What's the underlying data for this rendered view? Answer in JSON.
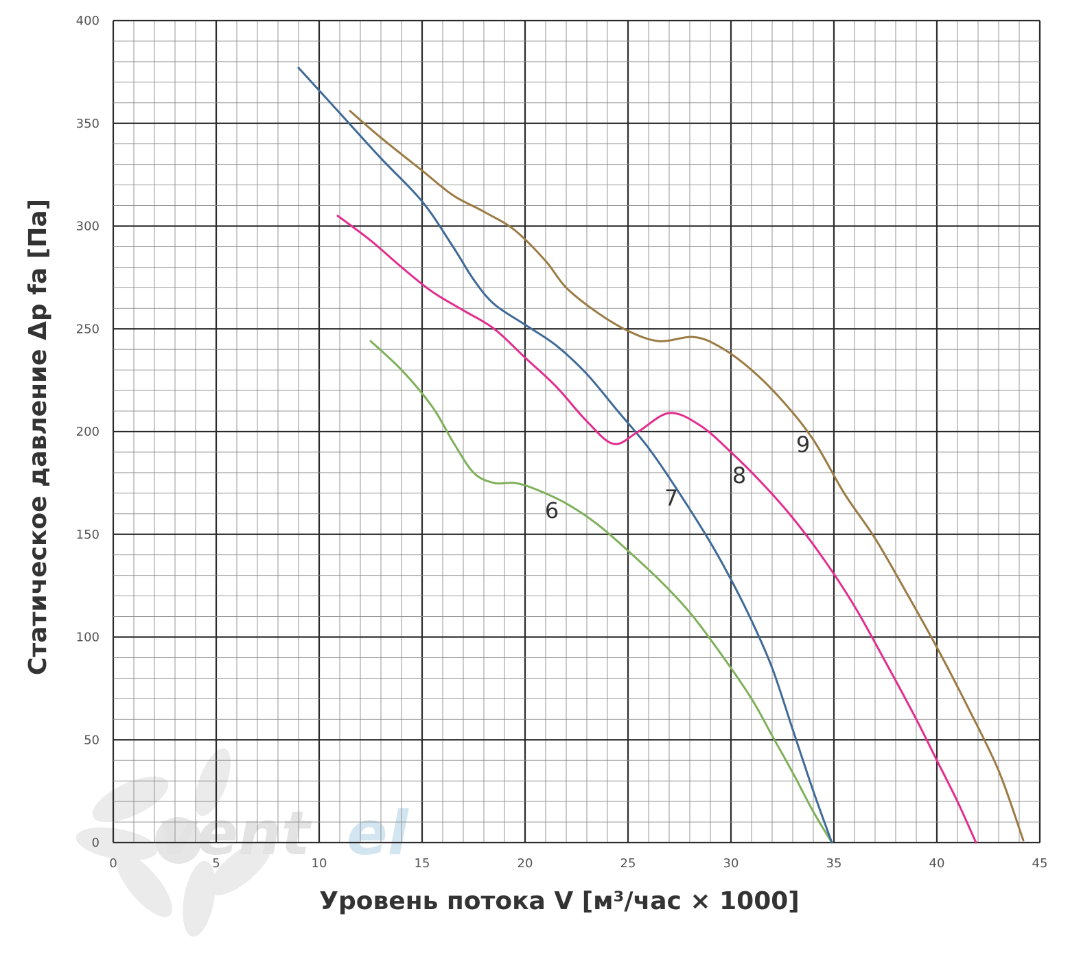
{
  "chart_data": {
    "type": "line",
    "title": "",
    "xlabel": "Уровень потока V [м³/час × 1000]",
    "ylabel": "Статическое давление Δp fa [Па]",
    "xlim": [
      0,
      45
    ],
    "ylim": [
      0,
      400
    ],
    "x_ticks": [
      "0",
      "5",
      "10",
      "15",
      "20",
      "25",
      "30",
      "35",
      "40",
      "45"
    ],
    "y_ticks": [
      "0",
      "50",
      "100",
      "150",
      "200",
      "250",
      "300",
      "350",
      "400"
    ],
    "grid": true,
    "watermark": "ventel",
    "series": [
      {
        "name": "6",
        "color": "#7fb05a",
        "points": [
          [
            12.5,
            244
          ],
          [
            14,
            230
          ],
          [
            15.5,
            212
          ],
          [
            16.5,
            195
          ],
          [
            17.5,
            180
          ],
          [
            18.5,
            175
          ],
          [
            19.5,
            175
          ],
          [
            20.5,
            172
          ],
          [
            22,
            165
          ],
          [
            23.5,
            155
          ],
          [
            25,
            142
          ],
          [
            26.5,
            128
          ],
          [
            28,
            112
          ],
          [
            29.5,
            92
          ],
          [
            31,
            70
          ],
          [
            32,
            52
          ],
          [
            33,
            34
          ],
          [
            34,
            15
          ],
          [
            34.9,
            0
          ]
        ]
      },
      {
        "name": "7",
        "color": "#3f6a97",
        "points": [
          [
            9,
            377
          ],
          [
            11,
            355
          ],
          [
            13,
            333
          ],
          [
            15,
            312
          ],
          [
            16.5,
            290
          ],
          [
            17.5,
            274
          ],
          [
            18.5,
            262
          ],
          [
            20,
            252
          ],
          [
            21.5,
            242
          ],
          [
            23,
            228
          ],
          [
            24.5,
            210
          ],
          [
            26,
            192
          ],
          [
            27.5,
            170
          ],
          [
            29,
            146
          ],
          [
            30,
            128
          ],
          [
            31,
            108
          ],
          [
            32,
            85
          ],
          [
            33,
            55
          ],
          [
            34,
            25
          ],
          [
            34.9,
            0
          ]
        ]
      },
      {
        "name": "8",
        "color": "#e22d8f",
        "points": [
          [
            10.9,
            305
          ],
          [
            12.5,
            293
          ],
          [
            14,
            280
          ],
          [
            15.5,
            268
          ],
          [
            17,
            259
          ],
          [
            18.5,
            250
          ],
          [
            20,
            236
          ],
          [
            21.5,
            222
          ],
          [
            23,
            205
          ],
          [
            24.3,
            194
          ],
          [
            25.5,
            200
          ],
          [
            27,
            209
          ],
          [
            28.5,
            203
          ],
          [
            30,
            190
          ],
          [
            31.5,
            175
          ],
          [
            33,
            158
          ],
          [
            34.5,
            138
          ],
          [
            36,
            115
          ],
          [
            37.5,
            88
          ],
          [
            39,
            60
          ],
          [
            40,
            40
          ],
          [
            41,
            20
          ],
          [
            41.9,
            0
          ]
        ]
      },
      {
        "name": "9",
        "color": "#9b7b43",
        "points": [
          [
            11.5,
            356
          ],
          [
            13,
            343
          ],
          [
            15,
            327
          ],
          [
            16.5,
            315
          ],
          [
            18,
            307
          ],
          [
            19.5,
            298
          ],
          [
            21,
            283
          ],
          [
            22,
            270
          ],
          [
            23.5,
            258
          ],
          [
            25,
            249
          ],
          [
            26.5,
            244
          ],
          [
            28.2,
            246
          ],
          [
            29.5,
            241
          ],
          [
            31,
            230
          ],
          [
            32.5,
            215
          ],
          [
            34,
            196
          ],
          [
            35.5,
            170
          ],
          [
            37,
            148
          ],
          [
            38.5,
            122
          ],
          [
            40,
            95
          ],
          [
            41.5,
            66
          ],
          [
            43,
            35
          ],
          [
            44.2,
            1
          ]
        ]
      }
    ],
    "curve_labels": [
      {
        "text": "6",
        "x": 21.3,
        "y": 158
      },
      {
        "text": "7",
        "x": 27.1,
        "y": 164
      },
      {
        "text": "8",
        "x": 30.4,
        "y": 175
      },
      {
        "text": "9",
        "x": 33.5,
        "y": 190
      }
    ]
  }
}
